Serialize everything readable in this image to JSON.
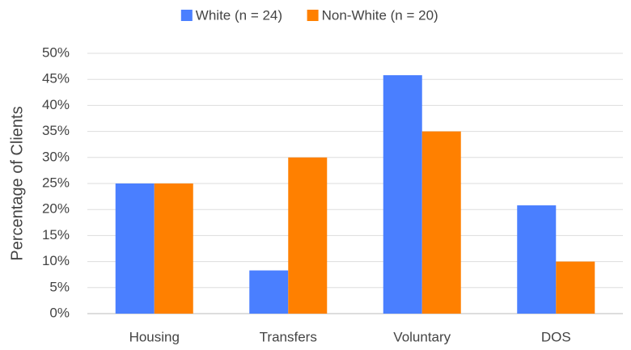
{
  "chart_data": {
    "type": "bar",
    "categories": [
      "Housing",
      "Transfers",
      "Voluntary",
      "DOS"
    ],
    "series": [
      {
        "name": "White (n = 24)",
        "color": "#4a7fff",
        "values": [
          25,
          8.3,
          45.8,
          20.8
        ]
      },
      {
        "name": "Non-White (n = 20)",
        "color": "#ff8000",
        "values": [
          25,
          30,
          35,
          10
        ]
      }
    ],
    "ylabel": "Percentage of Clients",
    "ylim": [
      0,
      50
    ],
    "yticks": [
      {
        "value": 0,
        "label": "0%"
      },
      {
        "value": 5,
        "label": "5%"
      },
      {
        "value": 10,
        "label": "10%"
      },
      {
        "value": 15,
        "label": "15%"
      },
      {
        "value": 20,
        "label": "20%"
      },
      {
        "value": 25,
        "label": "25%"
      },
      {
        "value": 30,
        "label": "30%"
      },
      {
        "value": 35,
        "label": "35%"
      },
      {
        "value": 40,
        "label": "40%"
      },
      {
        "value": 45,
        "label": "45%"
      },
      {
        "value": 50,
        "label": "50%"
      }
    ],
    "grid": true,
    "legend": "top"
  }
}
